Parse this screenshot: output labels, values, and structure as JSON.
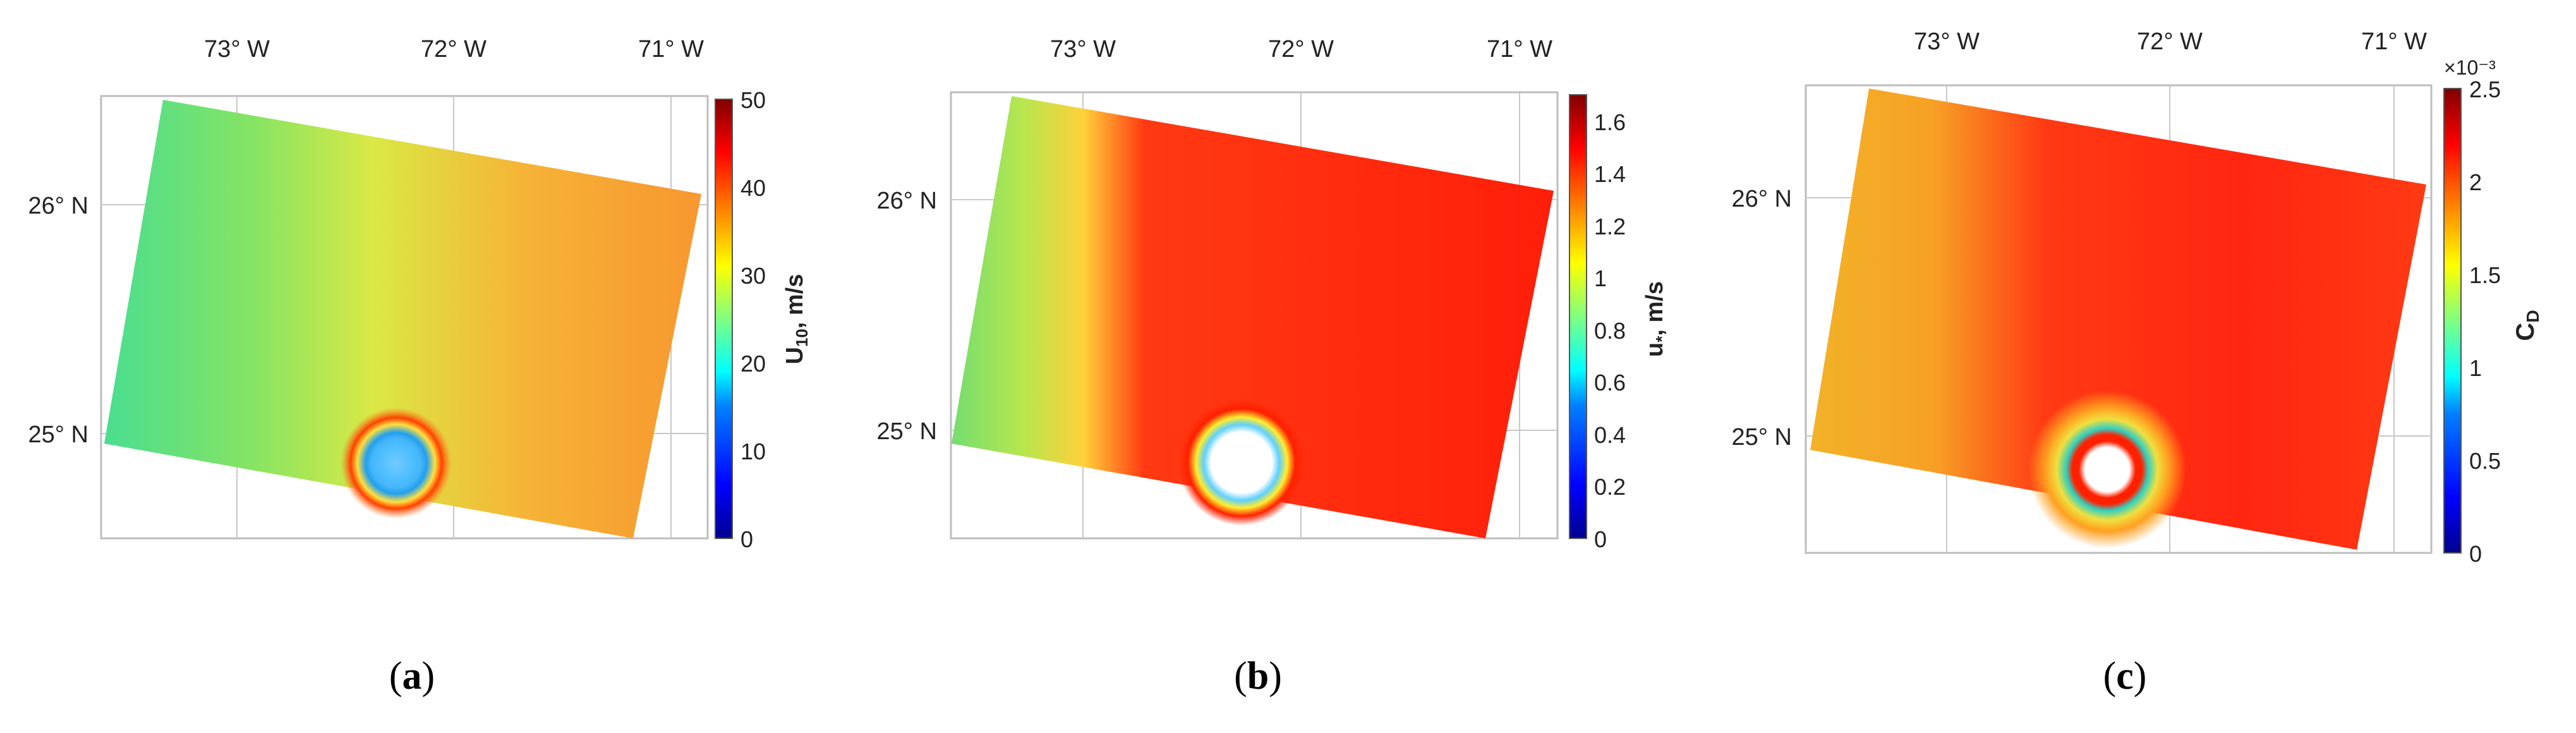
{
  "panels": [
    {
      "id": "a",
      "caption_letter": "a",
      "lon_ticks": [
        "73° W",
        "72° W",
        "71° W"
      ],
      "lat_ticks": [
        "26° N",
        "25° N"
      ],
      "colorbar": {
        "label": "U10, m/s",
        "label_main": "U",
        "label_sub": "10",
        "label_rest": ", m/s",
        "ticks": [
          "0",
          "10",
          "20",
          "30",
          "40",
          "50"
        ],
        "range": [
          0,
          50
        ]
      },
      "field": {
        "background_color": "#9fe04a",
        "eye_center_color": "#29a8ff"
      }
    },
    {
      "id": "b",
      "caption_letter": "b",
      "lon_ticks": [
        "73° W",
        "72° W",
        "71° W"
      ],
      "lat_ticks": [
        "26° N",
        "25° N"
      ],
      "colorbar": {
        "label": "u*, m/s",
        "label_main": "u",
        "label_sub": "*",
        "label_rest": ", m/s",
        "ticks": [
          "0",
          "0.2",
          "0.4",
          "0.6",
          "0.8",
          "1",
          "1.2",
          "1.4",
          "1.6"
        ],
        "range": [
          0,
          1.7
        ]
      },
      "field": {
        "background_color": "#ff2a10",
        "eye_center_color": "#ffffff"
      }
    },
    {
      "id": "c",
      "caption_letter": "c",
      "lon_ticks": [
        "73° W",
        "72° W",
        "71° W"
      ],
      "lat_ticks": [
        "26° N",
        "25° N"
      ],
      "colorbar": {
        "label": "CD",
        "label_main": "C",
        "label_sub": "D",
        "label_rest": "",
        "exponent": "×10⁻³",
        "ticks": [
          "0",
          "0.5",
          "1",
          "1.5",
          "2",
          "2.5"
        ],
        "range": [
          0,
          2.5
        ]
      },
      "field": {
        "background_color": "#ff3010",
        "eye_center_color": "#ffffff"
      }
    }
  ],
  "colors": {
    "jet": [
      "#00008f",
      "#0000ff",
      "#0080ff",
      "#00ffff",
      "#80ff80",
      "#ffff00",
      "#ff8000",
      "#ff0000",
      "#800000"
    ],
    "frame": "#bdbdbd",
    "grid": "#c8c8c8"
  }
}
